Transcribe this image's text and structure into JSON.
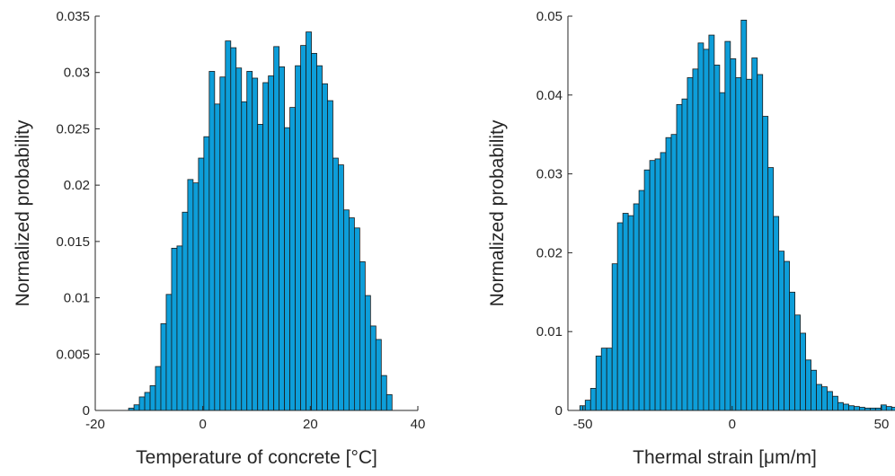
{
  "chart_data": [
    {
      "type": "bar",
      "title": "",
      "xlabel": "Temperature of concrete [°C]",
      "ylabel": "Normalized probability",
      "xlim": [
        -20,
        40
      ],
      "ylim": [
        0,
        0.035
      ],
      "xticks": [
        -20,
        0,
        20,
        40
      ],
      "yticks": [
        0,
        0.005,
        0.01,
        0.015,
        0.02,
        0.025,
        0.03,
        0.035
      ],
      "ytick_labels": [
        "0",
        "0.005",
        "0.01",
        "0.015",
        "0.02",
        "0.025",
        "0.03",
        "0.035"
      ],
      "bar_color": "#0d9ed9",
      "bin_start": -13.8,
      "bin_width": 1.0,
      "values": [
        0.0002,
        0.0005,
        0.0012,
        0.0016,
        0.0022,
        0.0039,
        0.0077,
        0.0103,
        0.0144,
        0.0146,
        0.0176,
        0.0205,
        0.0202,
        0.0224,
        0.0243,
        0.0301,
        0.0272,
        0.0296,
        0.0328,
        0.0322,
        0.0304,
        0.0274,
        0.0301,
        0.0295,
        0.0254,
        0.0291,
        0.0297,
        0.0323,
        0.0305,
        0.0251,
        0.0269,
        0.0306,
        0.0324,
        0.0336,
        0.0317,
        0.0306,
        0.029,
        0.0275,
        0.0224,
        0.0218,
        0.0178,
        0.0171,
        0.0162,
        0.0132,
        0.0102,
        0.0075,
        0.0063,
        0.0031,
        0.0014
      ]
    },
    {
      "type": "bar",
      "title": "",
      "xlabel": "Thermal strain [μm/m]",
      "ylabel": "Normalized probability",
      "xlim": [
        -55,
        50
      ],
      "ylim": [
        0,
        0.05
      ],
      "xticks": [
        -50,
        0,
        50
      ],
      "yticks": [
        0,
        0.01,
        0.02,
        0.03,
        0.04,
        0.05
      ],
      "ytick_labels": [
        "0",
        "0.01",
        "0.02",
        "0.03",
        "0.04",
        "0.05"
      ],
      "bar_color": "#0d9ed9",
      "bin_start": -51.0,
      "bin_width": 1.8,
      "values": [
        0.0006,
        0.0013,
        0.0028,
        0.0069,
        0.0079,
        0.0079,
        0.0186,
        0.0238,
        0.025,
        0.0247,
        0.0262,
        0.0279,
        0.0305,
        0.0317,
        0.0319,
        0.0327,
        0.0346,
        0.035,
        0.0388,
        0.0395,
        0.0422,
        0.0433,
        0.0466,
        0.0458,
        0.0476,
        0.0438,
        0.0403,
        0.0468,
        0.0446,
        0.0422,
        0.0495,
        0.042,
        0.0447,
        0.0426,
        0.0373,
        0.0308,
        0.0246,
        0.0202,
        0.0189,
        0.015,
        0.0121,
        0.0098,
        0.0064,
        0.0051,
        0.0033,
        0.003,
        0.0024,
        0.0018,
        0.001,
        0.0008,
        0.0006,
        0.0005,
        0.0004,
        0.0003,
        0.0003,
        0.0003,
        0.0007,
        0.0005,
        0.0004,
        0.0005
      ]
    }
  ]
}
